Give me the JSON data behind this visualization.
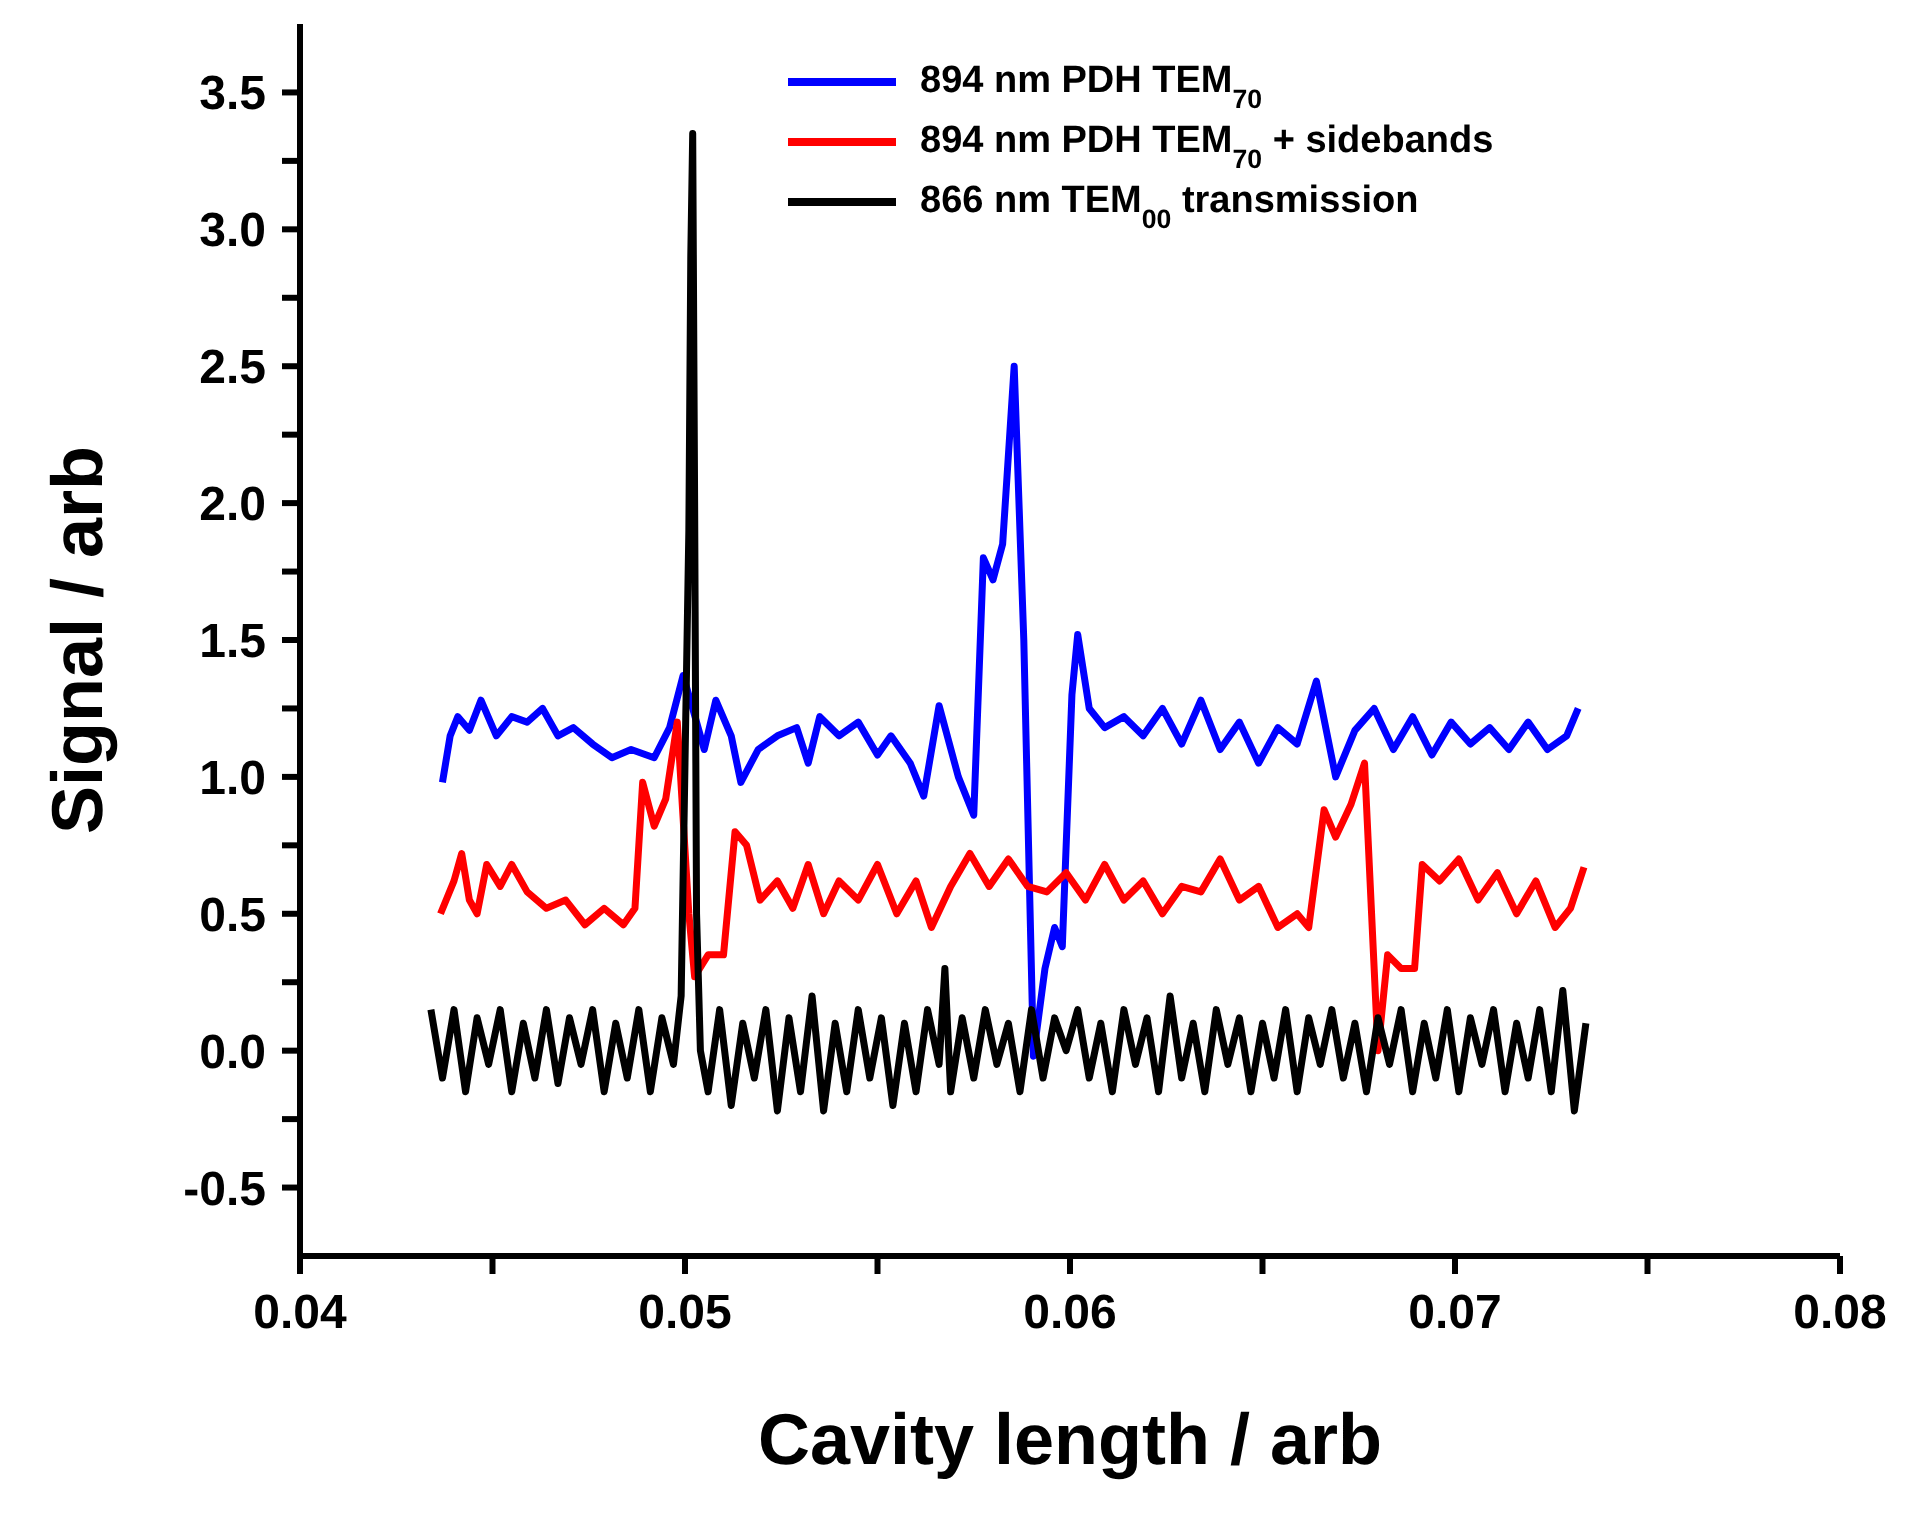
{
  "chart_data": {
    "type": "line",
    "xlabel": "Cavity length / arb",
    "ylabel": "Signal / arb",
    "xlim": [
      0.04,
      0.08
    ],
    "ylim": [
      -0.75,
      3.75
    ],
    "xticks": [
      {
        "value": 0.04,
        "label": "0.04"
      },
      {
        "value": 0.045,
        "label": null
      },
      {
        "value": 0.05,
        "label": "0.05"
      },
      {
        "value": 0.055,
        "label": null
      },
      {
        "value": 0.06,
        "label": "0.06"
      },
      {
        "value": 0.065,
        "label": null
      },
      {
        "value": 0.07,
        "label": "0.07"
      },
      {
        "value": 0.075,
        "label": null
      },
      {
        "value": 0.08,
        "label": "0.08"
      }
    ],
    "yticks": [
      {
        "value": -0.5,
        "label": "-0.5"
      },
      {
        "value": -0.25,
        "label": null
      },
      {
        "value": 0,
        "label": "0.0"
      },
      {
        "value": 0.25,
        "label": null
      },
      {
        "value": 0.5,
        "label": "0.5"
      },
      {
        "value": 0.75,
        "label": null
      },
      {
        "value": 1,
        "label": "1.0"
      },
      {
        "value": 1.25,
        "label": null
      },
      {
        "value": 1.5,
        "label": "1.5"
      },
      {
        "value": 1.75,
        "label": null
      },
      {
        "value": 2,
        "label": "2.0"
      },
      {
        "value": 2.25,
        "label": null
      },
      {
        "value": 2.5,
        "label": "2.5"
      },
      {
        "value": 2.75,
        "label": null
      },
      {
        "value": 3,
        "label": "3.0"
      },
      {
        "value": 3.25,
        "label": null
      },
      {
        "value": 3.5,
        "label": "3.5"
      }
    ],
    "grid": false,
    "legend": "top right",
    "marker": "none",
    "line_style": "solid",
    "series": [
      {
        "name": "894 nm PDH TEM$_{70}$",
        "color": "#0000ff",
        "x": [
          0.0437,
          0.0439,
          0.0441,
          0.0444,
          0.0447,
          0.0451,
          0.0455,
          0.0459,
          0.0463,
          0.0467,
          0.0471,
          0.0476,
          0.0481,
          0.0486,
          0.0492,
          0.0496,
          0.04995,
          0.0502,
          0.0505,
          0.0508,
          0.0512,
          0.05145,
          0.0519,
          0.0524,
          0.0529,
          0.0532,
          0.0535,
          0.054,
          0.0545,
          0.055,
          0.05535,
          0.05585,
          0.0562,
          0.0566,
          0.0571,
          0.0575,
          0.05775,
          0.058,
          0.05825,
          0.05855,
          0.0588,
          0.05905,
          0.05935,
          0.0596,
          0.0598,
          0.06005,
          0.0602,
          0.0605,
          0.0609,
          0.0614,
          0.0619,
          0.0624,
          0.0629,
          0.0634,
          0.0639,
          0.0644,
          0.0649,
          0.0654,
          0.0659,
          0.0664,
          0.0669,
          0.0674,
          0.0679,
          0.0684,
          0.0689,
          0.0694,
          0.0699,
          0.0704,
          0.0709,
          0.0714,
          0.0719,
          0.0724,
          0.0729,
          0.0732
        ],
        "values": [
          0.98,
          1.15,
          1.22,
          1.17,
          1.28,
          1.15,
          1.22,
          1.2,
          1.25,
          1.15,
          1.18,
          1.12,
          1.07,
          1.1,
          1.07,
          1.18,
          1.37,
          1.25,
          1.1,
          1.28,
          1.15,
          0.98,
          1.1,
          1.15,
          1.18,
          1.05,
          1.22,
          1.15,
          1.2,
          1.08,
          1.15,
          1.05,
          0.93,
          1.26,
          1,
          0.86,
          1.8,
          1.72,
          1.85,
          2.5,
          1.5,
          -0.02,
          0.3,
          0.45,
          0.38,
          1.3,
          1.52,
          1.25,
          1.18,
          1.22,
          1.15,
          1.25,
          1.12,
          1.28,
          1.1,
          1.2,
          1.05,
          1.18,
          1.12,
          1.35,
          1,
          1.17,
          1.25,
          1.1,
          1.22,
          1.08,
          1.2,
          1.12,
          1.18,
          1.1,
          1.2,
          1.1,
          1.15,
          1.25
        ]
      },
      {
        "name": "894 nm PDH TEM$_{70}$ + sidebands",
        "color": "#ff0000",
        "x": [
          0.04365,
          0.044,
          0.0442,
          0.0444,
          0.0446,
          0.04485,
          0.0452,
          0.0455,
          0.0459,
          0.0464,
          0.0469,
          0.0474,
          0.0479,
          0.0484,
          0.0487,
          0.0489,
          0.0492,
          0.0495,
          0.0498,
          0.0501,
          0.05025,
          0.0506,
          0.051,
          0.0513,
          0.0516,
          0.05195,
          0.0524,
          0.0528,
          0.0532,
          0.0536,
          0.054,
          0.0545,
          0.055,
          0.0555,
          0.056,
          0.0564,
          0.0569,
          0.0574,
          0.0579,
          0.0584,
          0.0589,
          0.0594,
          0.0599,
          0.0604,
          0.0609,
          0.0614,
          0.0619,
          0.0624,
          0.0629,
          0.0634,
          0.0639,
          0.0644,
          0.0649,
          0.0654,
          0.0659,
          0.0662,
          0.0666,
          0.0669,
          0.0673,
          0.06765,
          0.068,
          0.06825,
          0.0686,
          0.06895,
          0.06915,
          0.0696,
          0.0701,
          0.0706,
          0.0711,
          0.0716,
          0.0721,
          0.0726,
          0.073,
          0.07335
        ],
        "values": [
          0.5,
          0.62,
          0.72,
          0.55,
          0.5,
          0.68,
          0.6,
          0.68,
          0.58,
          0.52,
          0.55,
          0.46,
          0.52,
          0.46,
          0.52,
          0.98,
          0.82,
          0.92,
          1.2,
          0.5,
          0.27,
          0.35,
          0.35,
          0.8,
          0.75,
          0.55,
          0.62,
          0.52,
          0.68,
          0.5,
          0.62,
          0.55,
          0.68,
          0.5,
          0.62,
          0.45,
          0.6,
          0.72,
          0.6,
          0.7,
          0.6,
          0.58,
          0.65,
          0.55,
          0.68,
          0.55,
          0.62,
          0.5,
          0.6,
          0.58,
          0.7,
          0.55,
          0.6,
          0.45,
          0.5,
          0.45,
          0.88,
          0.78,
          0.9,
          1.05,
          0,
          0.35,
          0.3,
          0.3,
          0.68,
          0.62,
          0.7,
          0.55,
          0.65,
          0.5,
          0.62,
          0.45,
          0.52,
          0.67
        ]
      },
      {
        "name": "866 nm TEM$_{00}$ transmission",
        "color": "#000000",
        "x": [
          0.0434,
          0.0437,
          0.044,
          0.0443,
          0.0446,
          0.0449,
          0.0452,
          0.0455,
          0.0458,
          0.0461,
          0.0464,
          0.0467,
          0.047,
          0.0473,
          0.0476,
          0.0479,
          0.0482,
          0.0485,
          0.0488,
          0.0491,
          0.0494,
          0.0497,
          0.0499,
          0.0501,
          0.05015,
          0.0502,
          0.05025,
          0.0503,
          0.0504,
          0.0506,
          0.0509,
          0.0512,
          0.0515,
          0.0518,
          0.0521,
          0.0524,
          0.0527,
          0.053,
          0.0533,
          0.0536,
          0.0539,
          0.0542,
          0.0545,
          0.0548,
          0.0551,
          0.0554,
          0.0557,
          0.056,
          0.0563,
          0.0566,
          0.05675,
          0.0569,
          0.0572,
          0.0575,
          0.0578,
          0.0581,
          0.0584,
          0.0587,
          0.059,
          0.0593,
          0.0596,
          0.0599,
          0.0602,
          0.0605,
          0.0608,
          0.0611,
          0.0614,
          0.0617,
          0.062,
          0.0623,
          0.0626,
          0.0629,
          0.0632,
          0.0635,
          0.0638,
          0.0641,
          0.0644,
          0.0647,
          0.065,
          0.0653,
          0.0656,
          0.0659,
          0.0662,
          0.0665,
          0.0668,
          0.0671,
          0.0674,
          0.0677,
          0.068,
          0.0683,
          0.0686,
          0.0689,
          0.0692,
          0.0695,
          0.0698,
          0.0701,
          0.0704,
          0.0707,
          0.071,
          0.0713,
          0.0716,
          0.0719,
          0.0722,
          0.0725,
          0.0728,
          0.0731,
          0.0734
        ],
        "values": [
          0.15,
          -0.1,
          0.15,
          -0.15,
          0.12,
          -0.05,
          0.15,
          -0.15,
          0.1,
          -0.1,
          0.15,
          -0.12,
          0.12,
          -0.05,
          0.15,
          -0.15,
          0.1,
          -0.1,
          0.15,
          -0.15,
          0.12,
          -0.05,
          0.2,
          1.9,
          2.9,
          3.35,
          2,
          0.5,
          0,
          -0.15,
          0.15,
          -0.2,
          0.1,
          -0.1,
          0.15,
          -0.22,
          0.12,
          -0.15,
          0.2,
          -0.22,
          0.1,
          -0.15,
          0.15,
          -0.1,
          0.12,
          -0.2,
          0.1,
          -0.15,
          0.15,
          -0.05,
          0.3,
          -0.15,
          0.12,
          -0.1,
          0.15,
          -0.05,
          0.1,
          -0.15,
          0.15,
          -0.1,
          0.12,
          0,
          0.15,
          -0.1,
          0.1,
          -0.15,
          0.15,
          -0.05,
          0.12,
          -0.15,
          0.2,
          -0.1,
          0.1,
          -0.15,
          0.15,
          -0.05,
          0.12,
          -0.15,
          0.1,
          -0.1,
          0.15,
          -0.15,
          0.12,
          -0.05,
          0.15,
          -0.1,
          0.1,
          -0.15,
          0.12,
          -0.05,
          0.15,
          -0.15,
          0.1,
          -0.1,
          0.15,
          -0.15,
          0.12,
          -0.05,
          0.15,
          -0.15,
          0.1,
          -0.1,
          0.15,
          -0.15,
          0.22,
          -0.22,
          0.1
        ]
      }
    ]
  }
}
